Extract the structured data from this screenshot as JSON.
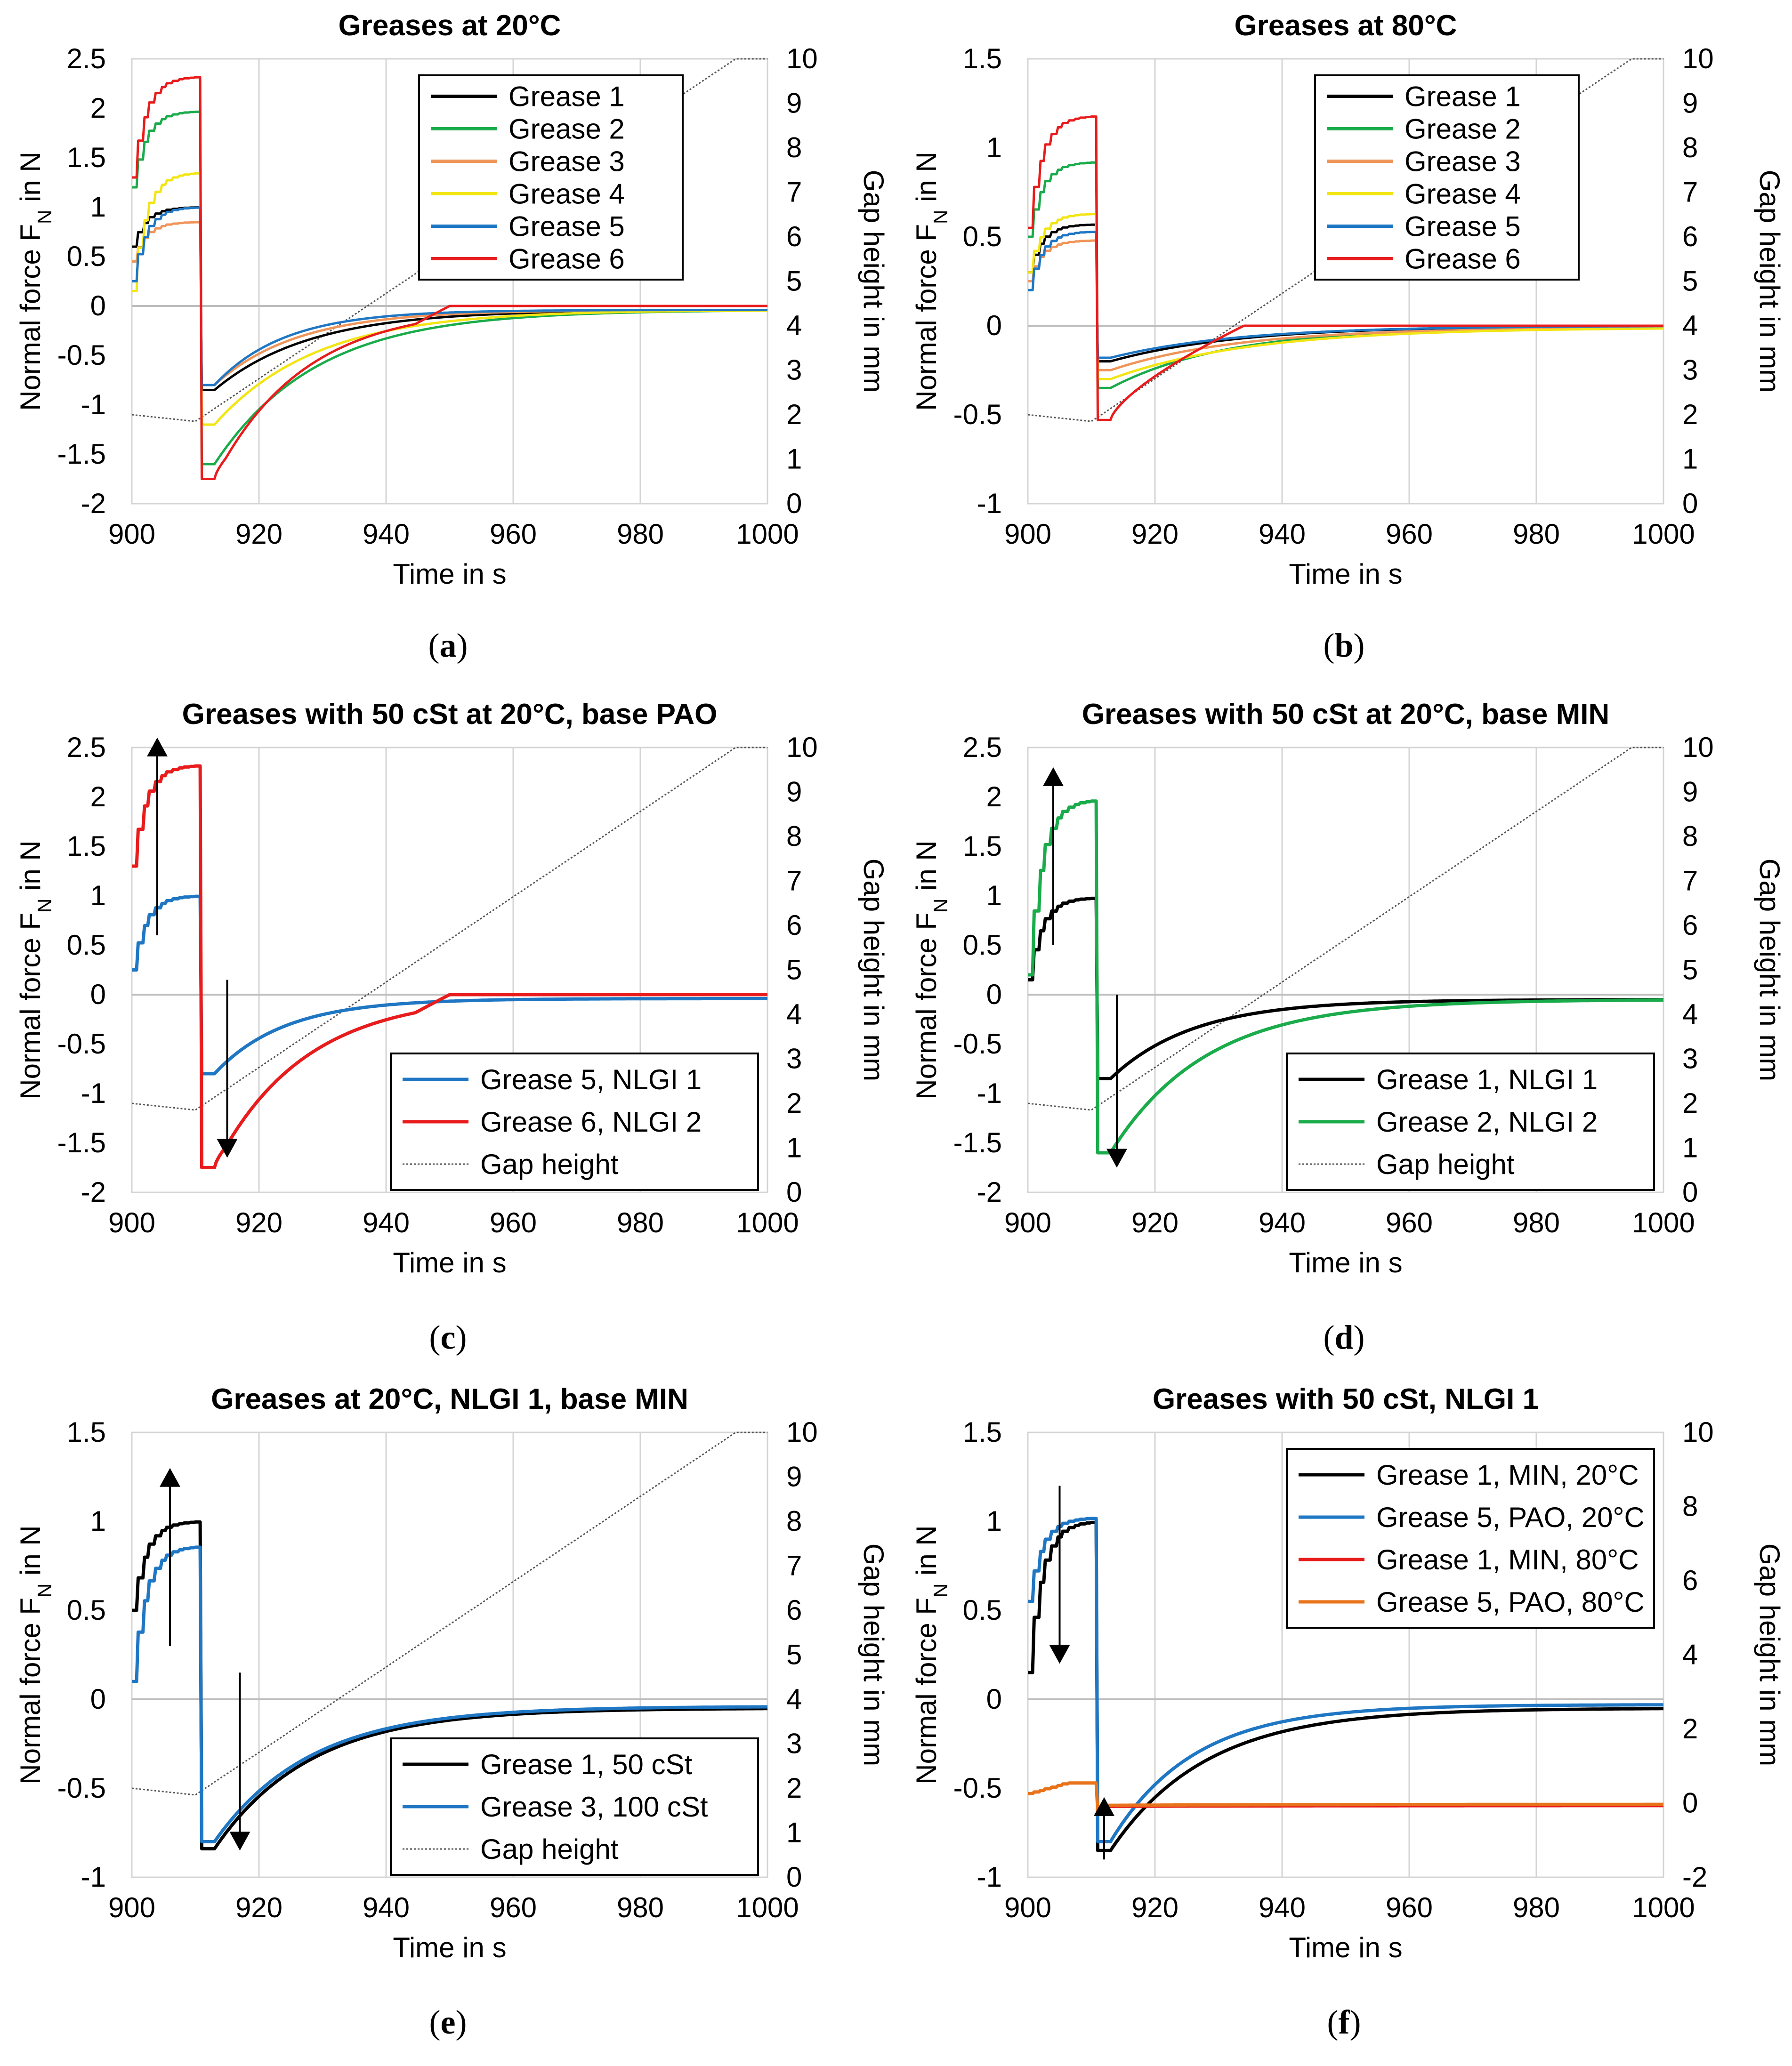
{
  "figure": {
    "captions": [
      "(a)",
      "(b)",
      "(c)",
      "(d)",
      "(e)",
      "(f)"
    ],
    "caption_letters": [
      "a",
      "b",
      "c",
      "d",
      "e",
      "f"
    ]
  },
  "colors": {
    "grease1": "#000000",
    "grease2": "#1aab4b",
    "grease3": "#f0955a",
    "grease4": "#f2e514",
    "grease5": "#1f77c4",
    "grease6": "#e81c1c",
    "orange": "#e8731a",
    "gap": "#555555"
  },
  "chart_data": [
    {
      "type": "line",
      "title": "Greases at 20°C",
      "xlabel": "Time in s",
      "ylabel": "Normal force  F_N in N",
      "y2label": "Gap height in mm",
      "xlim": [
        900,
        1000
      ],
      "ylim": [
        -2,
        2.5
      ],
      "y2lim": [
        0,
        10
      ],
      "xticks": [
        "900",
        "920",
        "940",
        "960",
        "980",
        "1000"
      ],
      "yticks": [
        "-2",
        "-1.5",
        "-1",
        "-0.5",
        "0",
        "0.5",
        "1",
        "1.5",
        "2",
        "2.5"
      ],
      "y2ticks": [
        "0",
        "1",
        "2",
        "3",
        "4",
        "5",
        "6",
        "7",
        "8",
        "9",
        "10"
      ],
      "grid": true,
      "legend_position": "top-right",
      "gap_height": true,
      "series": [
        {
          "name": "Grease 1",
          "color": "#000000",
          "start": 0.6,
          "peak": 1.0,
          "dip": -0.85,
          "settle": -0.04,
          "tau": 15
        },
        {
          "name": "Grease 2",
          "color": "#1aab4b",
          "start": 1.2,
          "peak": 1.97,
          "dip": -1.6,
          "settle": -0.04,
          "tau": 16
        },
        {
          "name": "Grease 3",
          "color": "#f0955a",
          "start": 0.45,
          "peak": 0.85,
          "dip": -0.8,
          "settle": -0.04,
          "tau": 13
        },
        {
          "name": "Grease 4",
          "color": "#f2e514",
          "start": 0.15,
          "peak": 1.35,
          "dip": -1.2,
          "settle": -0.04,
          "tau": 16
        },
        {
          "name": "Grease 5",
          "color": "#1f77c4",
          "start": 0.25,
          "peak": 1.0,
          "dip": -0.8,
          "settle": -0.04,
          "tau": 11
        },
        {
          "name": "Grease 6",
          "color": "#e81c1c",
          "start": 1.3,
          "peak": 2.32,
          "dip": -1.75,
          "settle": 0.0,
          "tau": 14,
          "zeroAt": 950
        }
      ]
    },
    {
      "type": "line",
      "title": "Greases at 80°C",
      "xlabel": "Time in s",
      "ylabel": "Normal force  F_N in N",
      "y2label": "Gap height in mm",
      "xlim": [
        900,
        1000
      ],
      "ylim": [
        -1,
        1.5
      ],
      "y2lim": [
        0,
        10
      ],
      "xticks": [
        "900",
        "920",
        "940",
        "960",
        "980",
        "1000"
      ],
      "yticks": [
        "-1",
        "-0.5",
        "0",
        "0.5",
        "1",
        "1.5"
      ],
      "y2ticks": [
        "0",
        "1",
        "2",
        "3",
        "4",
        "5",
        "6",
        "7",
        "8",
        "9",
        "10"
      ],
      "grid": true,
      "legend_position": "top-right",
      "gap_height": true,
      "series": [
        {
          "name": "Grease 1",
          "color": "#000000",
          "start": 0.3,
          "peak": 0.57,
          "dip": -0.2,
          "settle": 0.0,
          "tau": 20
        },
        {
          "name": "Grease 2",
          "color": "#1aab4b",
          "start": 0.5,
          "peak": 0.92,
          "dip": -0.35,
          "settle": -0.01,
          "tau": 18
        },
        {
          "name": "Grease 3",
          "color": "#f0955a",
          "start": 0.25,
          "peak": 0.48,
          "dip": -0.25,
          "settle": -0.01,
          "tau": 20
        },
        {
          "name": "Grease 4",
          "color": "#f2e514",
          "start": 0.3,
          "peak": 0.63,
          "dip": -0.3,
          "settle": -0.01,
          "tau": 22
        },
        {
          "name": "Grease 5",
          "color": "#1f77c4",
          "start": 0.2,
          "peak": 0.53,
          "dip": -0.18,
          "settle": 0.0,
          "tau": 20
        },
        {
          "name": "Grease 6",
          "color": "#e81c1c",
          "start": 0.55,
          "peak": 1.18,
          "dip": -0.53,
          "settle": 0.0,
          "tau": 12,
          "zeroAt": 934
        }
      ]
    },
    {
      "type": "line",
      "title": "Greases with 50 cSt at 20°C, base PAO",
      "xlabel": "Time in s",
      "ylabel": "Normal force  F_N in N",
      "y2label": "Gap height in mm",
      "xlim": [
        900,
        1000
      ],
      "ylim": [
        -2,
        2.5
      ],
      "y2lim": [
        0,
        10
      ],
      "xticks": [
        "900",
        "920",
        "940",
        "960",
        "980",
        "1000"
      ],
      "yticks": [
        "-2",
        "-1.5",
        "-1",
        "-0.5",
        "0",
        "0.5",
        "1",
        "1.5",
        "2",
        "2.5"
      ],
      "y2ticks": [
        "0",
        "1",
        "2",
        "3",
        "4",
        "5",
        "6",
        "7",
        "8",
        "9",
        "10"
      ],
      "grid": true,
      "legend_position": "bottom-right",
      "gap_height": true,
      "gap_legend": "Gap height",
      "arrows": [
        {
          "x": 904,
          "from": 0.6,
          "to": 2.6
        },
        {
          "x": 915,
          "from": 0.15,
          "to": -1.65
        }
      ],
      "series": [
        {
          "name": "Grease 5, NLGI 1",
          "color": "#1f77c4",
          "start": 0.25,
          "peak": 1.0,
          "dip": -0.8,
          "settle": -0.04,
          "tau": 11,
          "width": 7
        },
        {
          "name": "Grease 6, NLGI 2",
          "color": "#e81c1c",
          "start": 1.3,
          "peak": 2.32,
          "dip": -1.75,
          "settle": 0.0,
          "tau": 14,
          "zeroAt": 950,
          "width": 7
        }
      ]
    },
    {
      "type": "line",
      "title": "Greases with 50 cSt at 20°C, base MIN",
      "xlabel": "Time in s",
      "ylabel": "Normal force  F_N in N",
      "y2label": "Gap height in mm",
      "xlim": [
        900,
        1000
      ],
      "ylim": [
        -2,
        2.5
      ],
      "y2lim": [
        0,
        10
      ],
      "xticks": [
        "900",
        "920",
        "940",
        "960",
        "980",
        "1000"
      ],
      "yticks": [
        "-2",
        "-1.5",
        "-1",
        "-0.5",
        "0",
        "0.5",
        "1",
        "1.5",
        "2",
        "2.5"
      ],
      "y2ticks": [
        "0",
        "1",
        "2",
        "3",
        "4",
        "5",
        "6",
        "7",
        "8",
        "9",
        "10"
      ],
      "grid": true,
      "legend_position": "bottom-right",
      "gap_height": true,
      "gap_legend": "Gap height",
      "arrows": [
        {
          "x": 904,
          "from": 0.5,
          "to": 2.3
        },
        {
          "x": 914,
          "from": 0.0,
          "to": -1.75
        }
      ],
      "series": [
        {
          "name": "Grease 1, NLGI 1",
          "color": "#000000",
          "start": 0.15,
          "peak": 0.98,
          "dip": -0.85,
          "settle": -0.05,
          "tau": 13,
          "width": 7
        },
        {
          "name": "Grease 2, NLGI 2",
          "color": "#1aab4b",
          "start": 0.2,
          "peak": 1.97,
          "dip": -1.6,
          "settle": -0.05,
          "tau": 15,
          "width": 7
        }
      ]
    },
    {
      "type": "line",
      "title": "Greases at 20°C, NLGI 1, base MIN",
      "xlabel": "Time in s",
      "ylabel": "Normal force  F_N in N",
      "y2label": "Gap height in mm",
      "xlim": [
        900,
        1000
      ],
      "ylim": [
        -1,
        1.5
      ],
      "y2lim": [
        0,
        10
      ],
      "xticks": [
        "900",
        "920",
        "940",
        "960",
        "980",
        "1000"
      ],
      "yticks": [
        "-1",
        "-0.5",
        "0",
        "0.5",
        "1",
        "1.5"
      ],
      "y2ticks": [
        "0",
        "1",
        "2",
        "3",
        "4",
        "5",
        "6",
        "7",
        "8",
        "9",
        "10"
      ],
      "grid": true,
      "legend_position": "bottom-right",
      "gap_height": true,
      "gap_legend": "Gap height",
      "arrows": [
        {
          "x": 906,
          "from": 0.3,
          "to": 1.3
        },
        {
          "x": 917,
          "from": 0.15,
          "to": -0.85
        }
      ],
      "series": [
        {
          "name": "Grease 1, 50 cSt",
          "color": "#000000",
          "start": 0.5,
          "peak": 1.0,
          "dip": -0.84,
          "settle": -0.05,
          "tau": 15,
          "width": 7
        },
        {
          "name": "Grease 3, 100 cSt",
          "color": "#1f77c4",
          "start": 0.1,
          "peak": 0.86,
          "dip": -0.8,
          "settle": -0.04,
          "tau": 15,
          "width": 7
        }
      ]
    },
    {
      "type": "line",
      "title": "Greases with 50 cSt, NLGI 1",
      "xlabel": "Time in s",
      "ylabel": "Normal force  F_N in N",
      "y2label": "Gap height in mm",
      "xlim": [
        900,
        1000
      ],
      "ylim": [
        -1,
        1.5
      ],
      "y2lim": [
        -2,
        10
      ],
      "xticks": [
        "900",
        "920",
        "940",
        "960",
        "980",
        "1000"
      ],
      "yticks": [
        "-1",
        "-0.5",
        "0",
        "0.5",
        "1",
        "1.5"
      ],
      "y2ticks": [
        "-2",
        "0",
        "2",
        "4",
        "6",
        "8",
        "10"
      ],
      "grid": true,
      "legend_position": "top-right",
      "gap_height": false,
      "arrows": [
        {
          "x": 905,
          "from": 1.2,
          "to": 0.2
        },
        {
          "x": 912,
          "from": -0.9,
          "to": -0.55
        }
      ],
      "series": [
        {
          "name": "Grease 1, MIN, 20°C",
          "color": "#000000",
          "start": 0.15,
          "peak": 1.0,
          "dip": -0.85,
          "settle": -0.05,
          "tau": 15,
          "width": 7
        },
        {
          "name": "Grease 5, PAO, 20°C",
          "color": "#1f77c4",
          "start": 0.55,
          "peak": 1.02,
          "dip": -0.8,
          "settle": -0.03,
          "tau": 13,
          "width": 7
        },
        {
          "name": "Grease 1, MIN, 80°C",
          "color": "#e81c1c",
          "start": -0.53,
          "peak": -0.47,
          "dip": -0.63,
          "settle": -0.6,
          "tau": 30,
          "width": 5,
          "flat": true
        },
        {
          "name": "Grease 5, PAO, 80°C",
          "color": "#e8731a",
          "start": -0.53,
          "peak": -0.47,
          "dip": -0.63,
          "settle": -0.59,
          "tau": 30,
          "width": 7,
          "flat": true
        }
      ]
    }
  ]
}
